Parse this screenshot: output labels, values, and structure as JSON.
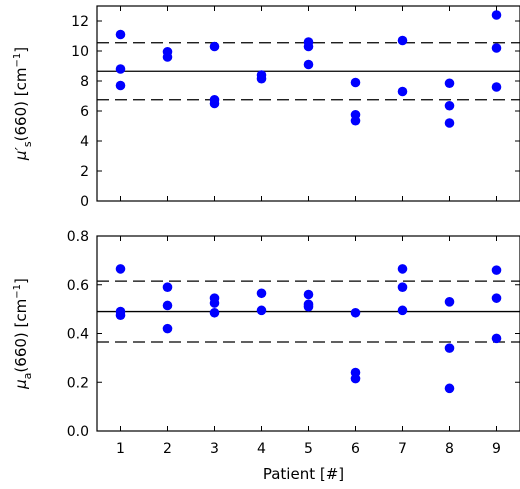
{
  "chart_data": [
    {
      "type": "scatter",
      "ylabel": "μ′s(660) [cm⁻¹]",
      "ylabel_parts": {
        "sym": "μ′",
        "sub": "s",
        "rest": "(660) [cm",
        "sup": "−1",
        "close": "]"
      },
      "xlabel": "",
      "xlim": [
        0.5,
        9.5
      ],
      "ylim": [
        0,
        13
      ],
      "yticks": [
        0,
        2,
        4,
        6,
        8,
        10,
        12
      ],
      "grid": false,
      "points": [
        {
          "x": 1,
          "y": 11.1
        },
        {
          "x": 1,
          "y": 8.8
        },
        {
          "x": 1,
          "y": 7.7
        },
        {
          "x": 2,
          "y": 9.95
        },
        {
          "x": 2,
          "y": 9.6
        },
        {
          "x": 3,
          "y": 10.3
        },
        {
          "x": 3,
          "y": 6.75
        },
        {
          "x": 3,
          "y": 6.5
        },
        {
          "x": 4,
          "y": 8.4
        },
        {
          "x": 4,
          "y": 8.15
        },
        {
          "x": 5,
          "y": 10.6
        },
        {
          "x": 5,
          "y": 10.3
        },
        {
          "x": 5,
          "y": 9.1
        },
        {
          "x": 6,
          "y": 7.9
        },
        {
          "x": 6,
          "y": 5.75
        },
        {
          "x": 6,
          "y": 5.35
        },
        {
          "x": 7,
          "y": 10.7
        },
        {
          "x": 7,
          "y": 7.3
        },
        {
          "x": 8,
          "y": 7.85
        },
        {
          "x": 8,
          "y": 6.35
        },
        {
          "x": 8,
          "y": 5.2
        },
        {
          "x": 9,
          "y": 12.4
        },
        {
          "x": 9,
          "y": 10.2
        },
        {
          "x": 9,
          "y": 7.6
        }
      ],
      "mean": 8.65,
      "mean_plus_sd": 10.55,
      "mean_minus_sd": 6.75,
      "point_color": "#0000ff"
    },
    {
      "type": "scatter",
      "ylabel": "μa(660) [cm⁻¹]",
      "ylabel_parts": {
        "sym": "μ",
        "sub": "a",
        "rest": "(660) [cm",
        "sup": "−1",
        "close": "]"
      },
      "xlabel": "Patient [#]",
      "xlim": [
        0.5,
        9.5
      ],
      "ylim": [
        0,
        0.8
      ],
      "yticks": [
        0.0,
        0.2,
        0.4,
        0.6,
        0.8
      ],
      "ytick_labels": [
        "0.0",
        "0.2",
        "0.4",
        "0.6",
        "0.8"
      ],
      "xticks": [
        1,
        2,
        3,
        4,
        5,
        6,
        7,
        8,
        9
      ],
      "grid": false,
      "points": [
        {
          "x": 1,
          "y": 0.665
        },
        {
          "x": 1,
          "y": 0.49
        },
        {
          "x": 1,
          "y": 0.475
        },
        {
          "x": 2,
          "y": 0.59
        },
        {
          "x": 2,
          "y": 0.515
        },
        {
          "x": 2,
          "y": 0.42
        },
        {
          "x": 3,
          "y": 0.545
        },
        {
          "x": 3,
          "y": 0.525
        },
        {
          "x": 3,
          "y": 0.485
        },
        {
          "x": 4,
          "y": 0.565
        },
        {
          "x": 4,
          "y": 0.495
        },
        {
          "x": 5,
          "y": 0.56
        },
        {
          "x": 5,
          "y": 0.52
        },
        {
          "x": 5,
          "y": 0.51
        },
        {
          "x": 6,
          "y": 0.485
        },
        {
          "x": 6,
          "y": 0.24
        },
        {
          "x": 6,
          "y": 0.215
        },
        {
          "x": 7,
          "y": 0.665
        },
        {
          "x": 7,
          "y": 0.59
        },
        {
          "x": 7,
          "y": 0.495
        },
        {
          "x": 8,
          "y": 0.53
        },
        {
          "x": 8,
          "y": 0.34
        },
        {
          "x": 8,
          "y": 0.175
        },
        {
          "x": 9,
          "y": 0.66
        },
        {
          "x": 9,
          "y": 0.545
        },
        {
          "x": 9,
          "y": 0.38
        }
      ],
      "mean": 0.49,
      "mean_plus_sd": 0.615,
      "mean_minus_sd": 0.365,
      "point_color": "#0000ff"
    }
  ]
}
